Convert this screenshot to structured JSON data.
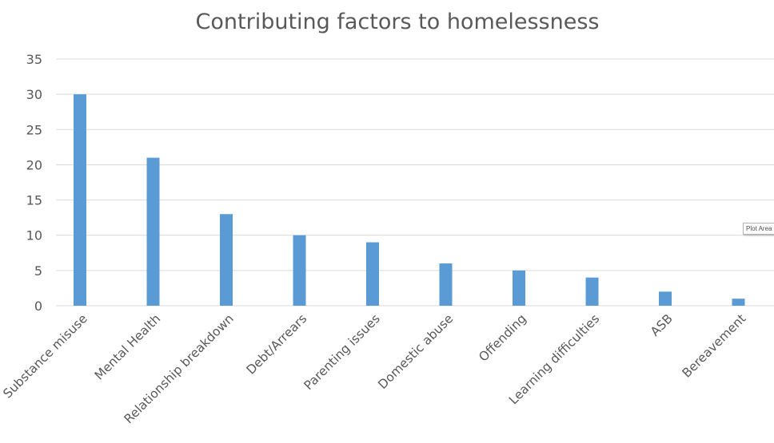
{
  "chart_data": {
    "type": "bar",
    "title": "Contributing factors to homelessness",
    "categories": [
      "Substance misuse",
      "Mental Health",
      "Relationship breakdown",
      "Debt/Arrears",
      "Parenting issues",
      "Domestic abuse",
      "Offending",
      "Learning difficulties",
      "ASB",
      "Bereavement"
    ],
    "values": [
      30,
      21,
      13,
      10,
      9,
      6,
      5,
      4,
      2,
      1
    ],
    "ylim": [
      0,
      35
    ],
    "yticks": [
      "0",
      "5",
      "10",
      "15",
      "20",
      "25",
      "30",
      "35"
    ],
    "grid": true,
    "bar_color": "#5b9bd5"
  },
  "tooltip": {
    "text": "Plot Area"
  }
}
